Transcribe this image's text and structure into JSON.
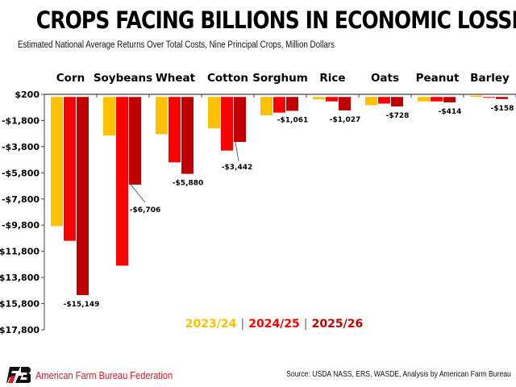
{
  "chart_data": {
    "type": "bar",
    "title": "CROPS FACING BILLIONS IN ECONOMIC LOSSES",
    "subtitle": "Estimated National Average Returns Over Total Costs, Nine Principal Crops, Million Dollars",
    "categories": [
      "Corn",
      "Soybeans",
      "Wheat",
      "Cotton",
      "Sorghum",
      "Rice",
      "Oats",
      "Peanut",
      "Barley"
    ],
    "series": [
      {
        "name": "2023/24",
        "color": "#ffc000",
        "values": [
          -9880,
          -2950,
          -2850,
          -2400,
          -1400,
          -180,
          -630,
          -340,
          100
        ]
      },
      {
        "name": "2024/25",
        "color": "#ff0000",
        "values": [
          -11000,
          -12900,
          -5000,
          -4100,
          -1200,
          -340,
          -510,
          -340,
          -20
        ]
      },
      {
        "name": "2025/26",
        "color": "#c00000",
        "values": [
          -15149,
          -6706,
          -5880,
          -3442,
          -1061,
          -1027,
          -728,
          -414,
          -158
        ]
      }
    ],
    "data_labels": [
      "-$15,149",
      "-$6,706",
      "-$5,880",
      "-$3,442",
      "-$1,061",
      "-$1,027",
      "-$728",
      "-$414",
      "-$158"
    ],
    "ylim": [
      -17800,
      200
    ],
    "yticks": [
      200,
      -1800,
      -3800,
      -5800,
      -7800,
      -9800,
      -11800,
      -13800,
      -15800,
      -17800
    ],
    "ytick_labels": [
      "$200",
      "-$1,800",
      "-$3,800",
      "-$5,800",
      "-$7,800",
      "-$9,800",
      "-$11,800",
      "-$13,800",
      "-$15,800",
      "-$17,800"
    ],
    "grid": false,
    "legend_placement": "bottom-center",
    "xlabel": "",
    "ylabel": ""
  },
  "legend_sep": "|",
  "footer": {
    "organization": "American Farm Bureau Federation",
    "source": "Source: USDA NASS, ERS, WASDE, Analysis by American Farm Bureau"
  }
}
